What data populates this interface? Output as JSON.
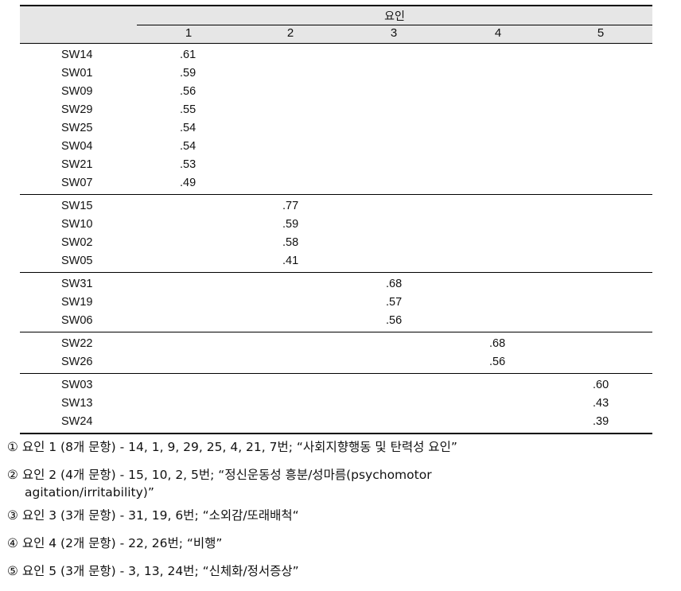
{
  "table": {
    "factor_header": "요인",
    "columns": [
      "1",
      "2",
      "3",
      "4",
      "5"
    ],
    "groups": [
      {
        "factor": 1,
        "rows": [
          {
            "item": "SW14",
            "value": ".61"
          },
          {
            "item": "SW01",
            "value": ".59"
          },
          {
            "item": "SW09",
            "value": ".56"
          },
          {
            "item": "SW29",
            "value": ".55"
          },
          {
            "item": "SW25",
            "value": ".54"
          },
          {
            "item": "SW04",
            "value": ".54"
          },
          {
            "item": "SW21",
            "value": ".53"
          },
          {
            "item": "SW07",
            "value": ".49"
          }
        ]
      },
      {
        "factor": 2,
        "rows": [
          {
            "item": "SW15",
            "value": ".77"
          },
          {
            "item": "SW10",
            "value": ".59"
          },
          {
            "item": "SW02",
            "value": ".58"
          },
          {
            "item": "SW05",
            "value": ".41"
          }
        ]
      },
      {
        "factor": 3,
        "rows": [
          {
            "item": "SW31",
            "value": ".68"
          },
          {
            "item": "SW19",
            "value": ".57"
          },
          {
            "item": "SW06",
            "value": ".56"
          }
        ]
      },
      {
        "factor": 4,
        "rows": [
          {
            "item": "SW22",
            "value": ".68"
          },
          {
            "item": "SW26",
            "value": ".56"
          }
        ]
      },
      {
        "factor": 5,
        "rows": [
          {
            "item": "SW03",
            "value": ".60"
          },
          {
            "item": "SW13",
            "value": ".43"
          },
          {
            "item": "SW24",
            "value": ".39"
          }
        ]
      }
    ]
  },
  "notes": [
    {
      "text": "① 요인 1 (8개 문항) - 14, 1, 9, 29, 25, 4, 21, 7번; “사회지향행동 및 탄력성 요인”"
    },
    {
      "text": "② 요인 2 (4개 문항) - 15, 10, 2, 5번; “정신운동성 흥분/성마름(psychomotor",
      "continuation": "agitation/irritability)”"
    },
    {
      "text": "③ 요인 3 (3개 문항) - 31, 19, 6번; “소외감/또래배척“"
    },
    {
      "text": "④ 요인 4 (2개 문항) - 22, 26번; “비행”"
    },
    {
      "text": "⑤ 요인 5 (3개 문항) - 3, 13, 24번; “신체화/정서증상”"
    }
  ]
}
